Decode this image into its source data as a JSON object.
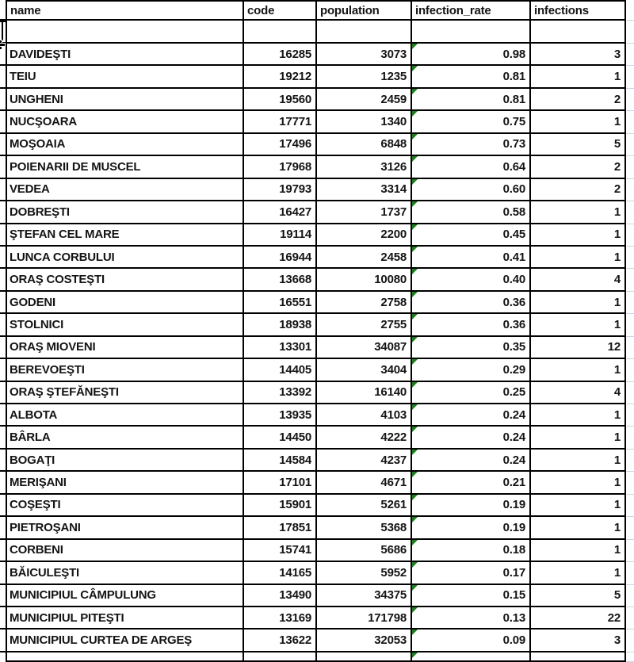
{
  "app": {
    "kind": "spreadsheet-grid"
  },
  "colors": {
    "border": "#000000",
    "text": "#141414",
    "gridline": "#ccd4e0",
    "error_indicator_green": "#1e7e1e",
    "background": "#ffffff"
  },
  "table": {
    "columns": [
      {
        "key": "name",
        "label": "name",
        "align": "left"
      },
      {
        "key": "code",
        "label": "code",
        "align": "right"
      },
      {
        "key": "population",
        "label": "population",
        "align": "right"
      },
      {
        "key": "infection_rate",
        "label": "infection_rate",
        "align": "right"
      },
      {
        "key": "infections",
        "label": "infections",
        "align": "right"
      }
    ],
    "empty_row_present": true,
    "rows": [
      {
        "name": "DAVIDEŞTI",
        "code": "16285",
        "population": "3073",
        "infection_rate": "0.98",
        "infections": "3"
      },
      {
        "name": "TEIU",
        "code": "19212",
        "population": "1235",
        "infection_rate": "0.81",
        "infections": "1"
      },
      {
        "name": "UNGHENI",
        "code": "19560",
        "population": "2459",
        "infection_rate": "0.81",
        "infections": "2"
      },
      {
        "name": "NUCŞOARA",
        "code": "17771",
        "population": "1340",
        "infection_rate": "0.75",
        "infections": "1"
      },
      {
        "name": "MOŞOAIA",
        "code": "17496",
        "population": "6848",
        "infection_rate": "0.73",
        "infections": "5"
      },
      {
        "name": "POIENARII DE MUSCEL",
        "code": "17968",
        "population": "3126",
        "infection_rate": "0.64",
        "infections": "2"
      },
      {
        "name": "VEDEA",
        "code": "19793",
        "population": "3314",
        "infection_rate": "0.60",
        "infections": "2"
      },
      {
        "name": "DOBREŞTI",
        "code": "16427",
        "population": "1737",
        "infection_rate": "0.58",
        "infections": "1"
      },
      {
        "name": "ŞTEFAN CEL MARE",
        "code": "19114",
        "population": "2200",
        "infection_rate": "0.45",
        "infections": "1"
      },
      {
        "name": "LUNCA CORBULUI",
        "code": "16944",
        "population": "2458",
        "infection_rate": "0.41",
        "infections": "1"
      },
      {
        "name": "ORAŞ COSTEŞTI",
        "code": "13668",
        "population": "10080",
        "infection_rate": "0.40",
        "infections": "4"
      },
      {
        "name": "GODENI",
        "code": "16551",
        "population": "2758",
        "infection_rate": "0.36",
        "infections": "1"
      },
      {
        "name": "STOLNICI",
        "code": "18938",
        "population": "2755",
        "infection_rate": "0.36",
        "infections": "1"
      },
      {
        "name": "ORAŞ MIOVENI",
        "code": "13301",
        "population": "34087",
        "infection_rate": "0.35",
        "infections": "12"
      },
      {
        "name": "BEREVOEŞTI",
        "code": "14405",
        "population": "3404",
        "infection_rate": "0.29",
        "infections": "1"
      },
      {
        "name": "ORAŞ ŞTEFĂNEŞTI",
        "code": "13392",
        "population": "16140",
        "infection_rate": "0.25",
        "infections": "4"
      },
      {
        "name": "ALBOTA",
        "code": "13935",
        "population": "4103",
        "infection_rate": "0.24",
        "infections": "1"
      },
      {
        "name": "BÂRLA",
        "code": "14450",
        "population": "4222",
        "infection_rate": "0.24",
        "infections": "1"
      },
      {
        "name": "BOGAŢI",
        "code": "14584",
        "population": "4237",
        "infection_rate": "0.24",
        "infections": "1"
      },
      {
        "name": "MERIŞANI",
        "code": "17101",
        "population": "4671",
        "infection_rate": "0.21",
        "infections": "1"
      },
      {
        "name": "COŞEŞTI",
        "code": "15901",
        "population": "5261",
        "infection_rate": "0.19",
        "infections": "1"
      },
      {
        "name": "PIETROŞANI",
        "code": "17851",
        "population": "5368",
        "infection_rate": "0.19",
        "infections": "1"
      },
      {
        "name": "CORBENI",
        "code": "15741",
        "population": "5686",
        "infection_rate": "0.18",
        "infections": "1"
      },
      {
        "name": "BĂICULEŞTI",
        "code": "14165",
        "population": "5952",
        "infection_rate": "0.17",
        "infections": "1"
      },
      {
        "name": "MUNICIPIUL CÂMPULUNG",
        "code": "13490",
        "population": "34375",
        "infection_rate": "0.15",
        "infections": "5"
      },
      {
        "name": "MUNICIPIUL PITEŞTI",
        "code": "13169",
        "population": "171798",
        "infection_rate": "0.13",
        "infections": "22"
      },
      {
        "name": "MUNICIPIUL CURTEA DE ARGEŞ",
        "code": "13622",
        "population": "32053",
        "infection_rate": "0.09",
        "infections": "3"
      }
    ],
    "error_indicator_on_column": "infection_rate",
    "partial_bottom_row_present": true
  }
}
